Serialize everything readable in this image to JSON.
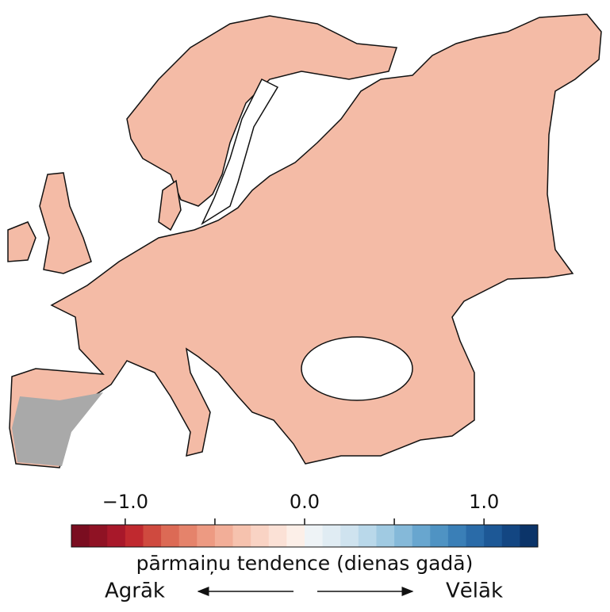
{
  "colorbar": {
    "lim": [
      -1.3,
      1.3
    ],
    "ticks": [
      {
        "value": -1,
        "label": "−1.0"
      },
      {
        "value": 0,
        "label": "0.0"
      },
      {
        "value": 1,
        "label": "1.0"
      }
    ],
    "minor_ticks": [
      -0.5,
      0.5
    ],
    "colors": [
      "#7a0d20",
      "#8f1224",
      "#a8182a",
      "#c0292f",
      "#cf4a3f",
      "#dc6a55",
      "#e5836b",
      "#ed9a82",
      "#f2ae98",
      "#f6c2ae",
      "#f9d3c4",
      "#fbe1d6",
      "#fcefe8",
      "#eef3f6",
      "#e0ecf3",
      "#cfe3ef",
      "#b9d8ea",
      "#a0cae2",
      "#85b9d9",
      "#68a6cf",
      "#4f93c3",
      "#3a7fb7",
      "#2a6ba8",
      "#1d5896",
      "#134682",
      "#0b3469"
    ],
    "label": "pārmaiņu tendence (dienas gadā)"
  },
  "arrows": {
    "left": "Agrāk",
    "right": "Vēlāk"
  }
}
